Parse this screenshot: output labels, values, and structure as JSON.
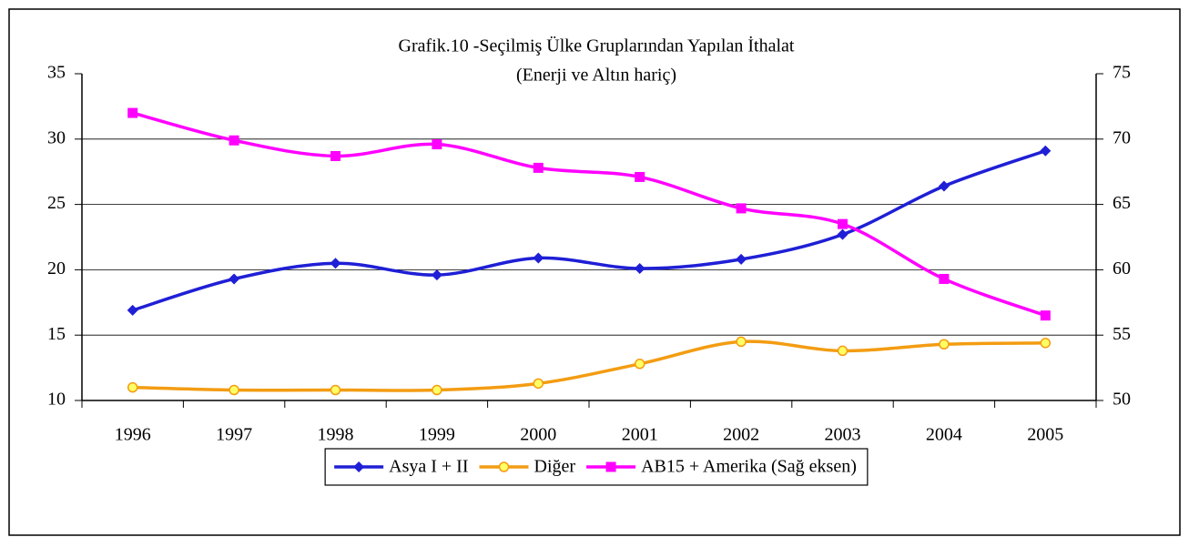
{
  "chart_data": {
    "type": "line",
    "title": "Grafik.10 -Seçilmiş Ülke Gruplarından Yapılan İthalat",
    "subtitle": "(Enerji ve Altın hariç)",
    "categories": [
      "1996",
      "1997",
      "1998",
      "1999",
      "2000",
      "2001",
      "2002",
      "2003",
      "2004",
      "2005"
    ],
    "series": [
      {
        "name": "Asya I + II",
        "color": "#1f1fd6",
        "marker": "diamond",
        "values": [
          16.9,
          19.3,
          20.5,
          19.6,
          20.9,
          20.1,
          20.8,
          22.7,
          26.4,
          29.1
        ]
      },
      {
        "name": "Diğer",
        "color": "#f39c12",
        "marker": "circle",
        "values": [
          11.0,
          10.8,
          10.8,
          10.8,
          11.3,
          12.8,
          14.5,
          13.8,
          14.3,
          14.4
        ]
      },
      {
        "name": "AB15 + Amerika (Sağ eksen)",
        "color": "#ff00ff",
        "marker": "square",
        "axis": "y2",
        "values": [
          72.0,
          69.9,
          68.7,
          69.6,
          67.8,
          67.1,
          64.7,
          63.5,
          59.3,
          56.5
        ]
      }
    ],
    "ylim": [
      10,
      35
    ],
    "yticks": [
      10,
      15,
      20,
      25,
      30,
      35
    ],
    "y2lim": [
      50,
      75
    ],
    "y2ticks": [
      50,
      55,
      60,
      65,
      70,
      75
    ],
    "grid": true,
    "legend": "bottom"
  }
}
